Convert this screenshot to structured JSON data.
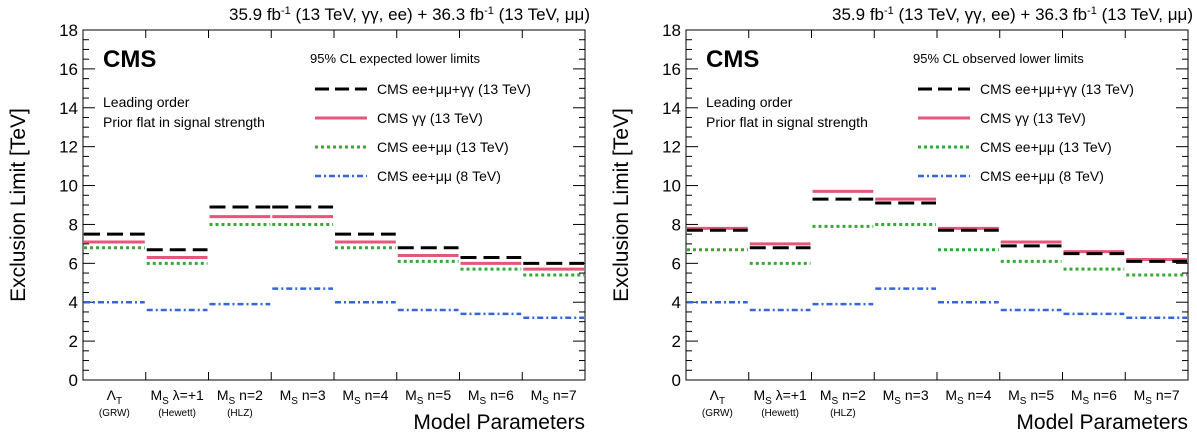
{
  "chart_data": [
    {
      "type": "step",
      "header": {
        "a": "35.9 fb",
        "a_sup": "-1",
        "b": " (13 TeV, γγ, ee) + 36.3 fb",
        "b_sup": "-1",
        "c": " (13 TeV, μμ)"
      },
      "experiment": "CMS",
      "legend_title": "95% CL expected lower limits",
      "notes": [
        "Leading order",
        "Prior flat in signal strength"
      ],
      "ylabel": "Exclusion Limit [TeV]",
      "xlabel": "Model Parameters",
      "ylim": [
        0,
        18
      ],
      "yticks": [
        "0",
        "2",
        "4",
        "6",
        "8",
        "10",
        "12",
        "14",
        "16",
        "18"
      ],
      "categories": [
        {
          "main": "Λ",
          "sub": "T",
          "rest": "",
          "note": "(GRW)"
        },
        {
          "main": "M",
          "sub": "S",
          "rest": " λ=+1",
          "note": "(Hewett)"
        },
        {
          "main": "M",
          "sub": "S",
          "rest": " n=2",
          "note": "(HLZ)"
        },
        {
          "main": "M",
          "sub": "S",
          "rest": " n=3",
          "note": ""
        },
        {
          "main": "M",
          "sub": "S",
          "rest": " n=4",
          "note": ""
        },
        {
          "main": "M",
          "sub": "S",
          "rest": " n=5",
          "note": ""
        },
        {
          "main": "M",
          "sub": "S",
          "rest": " n=6",
          "note": ""
        },
        {
          "main": "M",
          "sub": "S",
          "rest": " n=7",
          "note": ""
        }
      ],
      "series": [
        {
          "name": "CMS ee+μμ+γγ (13 TeV)",
          "style": "dashed",
          "color": "#000000",
          "values": [
            7.5,
            6.7,
            8.9,
            8.9,
            7.5,
            6.8,
            6.3,
            6.0
          ]
        },
        {
          "name": "CMS γγ (13 TeV)",
          "style": "solid",
          "color": "#e8557a",
          "values": [
            7.1,
            6.3,
            8.4,
            8.4,
            7.1,
            6.4,
            6.0,
            5.7
          ]
        },
        {
          "name": "CMS ee+μμ (13 TeV)",
          "style": "dotted",
          "color": "#33aa33",
          "values": [
            6.8,
            6.0,
            8.0,
            8.0,
            6.8,
            6.1,
            5.7,
            5.4
          ]
        },
        {
          "name": "CMS ee+μμ (8 TeV)",
          "style": "dashdot",
          "color": "#3366dd",
          "values": [
            4.0,
            3.6,
            3.9,
            4.7,
            4.0,
            3.6,
            3.4,
            3.2
          ]
        }
      ]
    },
    {
      "type": "step",
      "header": {
        "a": "35.9 fb",
        "a_sup": "-1",
        "b": " (13 TeV, γγ, ee) + 36.3 fb",
        "b_sup": "-1",
        "c": " (13 TeV, μμ)"
      },
      "experiment": "CMS",
      "legend_title": "95% CL observed lower limits",
      "notes": [
        "Leading order",
        "Prior flat in signal strength"
      ],
      "ylabel": "Exclusion Limit [TeV]",
      "xlabel": "Model Parameters",
      "ylim": [
        0,
        18
      ],
      "yticks": [
        "0",
        "2",
        "4",
        "6",
        "8",
        "10",
        "12",
        "14",
        "16",
        "18"
      ],
      "categories": [
        {
          "main": "Λ",
          "sub": "T",
          "rest": "",
          "note": "(GRW)"
        },
        {
          "main": "M",
          "sub": "S",
          "rest": " λ=+1",
          "note": "(Hewett)"
        },
        {
          "main": "M",
          "sub": "S",
          "rest": " n=2",
          "note": "(HLZ)"
        },
        {
          "main": "M",
          "sub": "S",
          "rest": " n=3",
          "note": ""
        },
        {
          "main": "M",
          "sub": "S",
          "rest": " n=4",
          "note": ""
        },
        {
          "main": "M",
          "sub": "S",
          "rest": " n=5",
          "note": ""
        },
        {
          "main": "M",
          "sub": "S",
          "rest": " n=6",
          "note": ""
        },
        {
          "main": "M",
          "sub": "S",
          "rest": " n=7",
          "note": ""
        }
      ],
      "series": [
        {
          "name": "CMS ee+μμ+γγ (13 TeV)",
          "style": "dashed",
          "color": "#000000",
          "values": [
            7.7,
            6.8,
            9.3,
            9.1,
            7.7,
            6.9,
            6.5,
            6.1
          ]
        },
        {
          "name": "CMS γγ (13 TeV)",
          "style": "solid",
          "color": "#e8557a",
          "values": [
            7.8,
            7.0,
            9.7,
            9.3,
            7.8,
            7.1,
            6.6,
            6.2
          ]
        },
        {
          "name": "CMS ee+μμ (13 TeV)",
          "style": "dotted",
          "color": "#33aa33",
          "values": [
            6.7,
            6.0,
            7.9,
            8.0,
            6.7,
            6.1,
            5.7,
            5.4
          ]
        },
        {
          "name": "CMS ee+μμ (8 TeV)",
          "style": "dashdot",
          "color": "#3366dd",
          "values": [
            4.0,
            3.6,
            3.9,
            4.7,
            4.0,
            3.6,
            3.4,
            3.2
          ]
        }
      ]
    }
  ]
}
